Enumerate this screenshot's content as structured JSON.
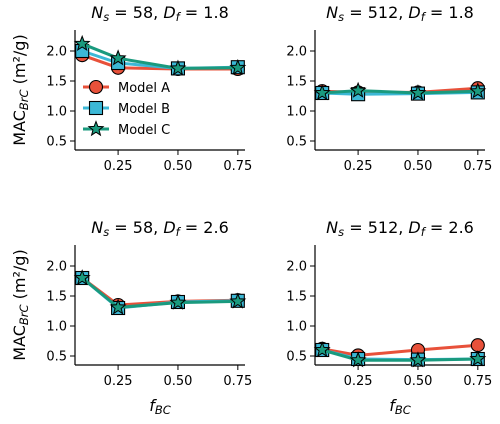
{
  "colors": {
    "model_a": "#e8513a",
    "model_b": "#3cb8d6",
    "model_c": "#1a9a7e"
  },
  "legend": {
    "entries": [
      "Model A",
      "Model B",
      "Model C"
    ],
    "placement": "left, inside top-left panel"
  },
  "chart_data": [
    {
      "type": "line",
      "title": "N_s = 58, D_f = 1.8",
      "ylabel": "MAC_BrC (m²/g)",
      "xlabel": "",
      "x": [
        0.1,
        0.25,
        0.5,
        0.75
      ],
      "xticks": [
        "0.25",
        "0.50",
        "0.75"
      ],
      "ylim": [
        0.35,
        2.35
      ],
      "yticks": [
        "0.5",
        "1.0",
        "1.5",
        "2.0"
      ],
      "series": [
        {
          "name": "Model A",
          "values": [
            1.93,
            1.72,
            1.7,
            1.7
          ]
        },
        {
          "name": "Model B",
          "values": [
            2.0,
            1.8,
            1.71,
            1.73
          ]
        },
        {
          "name": "Model C",
          "values": [
            2.12,
            1.88,
            1.71,
            1.72
          ]
        }
      ]
    },
    {
      "type": "line",
      "title": "N_s = 512, D_f = 1.8",
      "ylabel": "",
      "xlabel": "",
      "x": [
        0.1,
        0.25,
        0.5,
        0.75
      ],
      "xticks": [
        "0.25",
        "0.50",
        "0.75"
      ],
      "ylim": [
        0.35,
        2.35
      ],
      "yticks": [
        "0.5",
        "1.0",
        "1.5",
        "2.0"
      ],
      "series": [
        {
          "name": "Model A",
          "values": [
            1.33,
            1.31,
            1.31,
            1.38
          ]
        },
        {
          "name": "Model B",
          "values": [
            1.3,
            1.28,
            1.29,
            1.31
          ]
        },
        {
          "name": "Model C",
          "values": [
            1.3,
            1.34,
            1.3,
            1.33
          ]
        }
      ]
    },
    {
      "type": "line",
      "title": "N_s = 58, D_f = 2.6",
      "ylabel": "MAC_BrC (m²/g)",
      "xlabel": "f_BC",
      "x": [
        0.1,
        0.25,
        0.5,
        0.75
      ],
      "xticks": [
        "0.25",
        "0.50",
        "0.75"
      ],
      "ylim": [
        0.35,
        2.35
      ],
      "yticks": [
        "0.5",
        "1.0",
        "1.5",
        "2.0"
      ],
      "series": [
        {
          "name": "Model A",
          "values": [
            1.8,
            1.35,
            1.41,
            1.43
          ]
        },
        {
          "name": "Model B",
          "values": [
            1.8,
            1.3,
            1.4,
            1.42
          ]
        },
        {
          "name": "Model C",
          "values": [
            1.8,
            1.31,
            1.39,
            1.41
          ]
        }
      ]
    },
    {
      "type": "line",
      "title": "N_s = 512, D_f = 2.6",
      "ylabel": "",
      "xlabel": "f_BC",
      "x": [
        0.1,
        0.25,
        0.5,
        0.75
      ],
      "xticks": [
        "0.25",
        "0.50",
        "0.75"
      ],
      "ylim": [
        0.35,
        2.35
      ],
      "yticks": [
        "0.5",
        "1.0",
        "1.5",
        "2.0"
      ],
      "series": [
        {
          "name": "Model A",
          "values": [
            0.62,
            0.51,
            0.6,
            0.68
          ]
        },
        {
          "name": "Model B",
          "values": [
            0.6,
            0.45,
            0.44,
            0.45
          ]
        },
        {
          "name": "Model C",
          "values": [
            0.6,
            0.43,
            0.43,
            0.45
          ]
        }
      ]
    }
  ]
}
